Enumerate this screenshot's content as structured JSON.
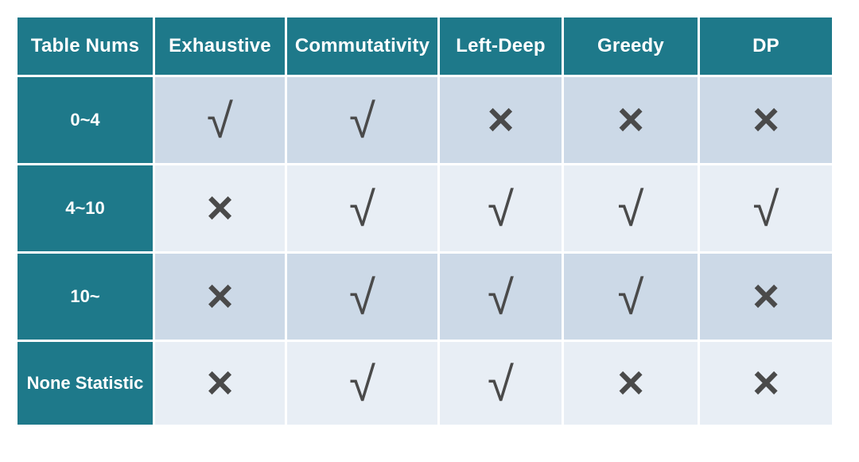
{
  "chart_data": {
    "type": "table",
    "columns": [
      "Table Nums",
      "Exhaustive",
      "Commutativity",
      "Left-Deep",
      "Greedy",
      "DP"
    ],
    "rows": [
      {
        "label": "0~4",
        "marks": [
          "check",
          "check",
          "cross",
          "cross",
          "cross"
        ]
      },
      {
        "label": "4~10",
        "marks": [
          "cross",
          "check",
          "check",
          "check",
          "check"
        ]
      },
      {
        "label": "10~",
        "marks": [
          "cross",
          "check",
          "check",
          "check",
          "cross"
        ]
      },
      {
        "label": "None Statistic",
        "marks": [
          "cross",
          "check",
          "check",
          "cross",
          "cross"
        ]
      }
    ],
    "symbols": {
      "check": "√",
      "cross": "×"
    }
  },
  "colors": {
    "header_bg": "#1e798a",
    "header_text": "#ffffff",
    "row_bg_odd": "#ccd9e7",
    "row_bg_even": "#e8eef5",
    "mark": "#4a4a4a",
    "page_bg": "#ffffff"
  }
}
